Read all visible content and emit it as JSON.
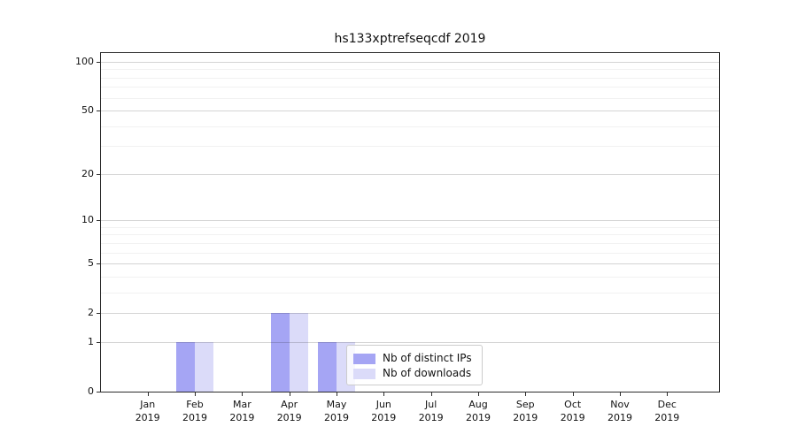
{
  "chart_data": {
    "type": "bar",
    "title": "hs133xptrefseqcdf 2019",
    "categories": [
      "Jan",
      "Feb",
      "Mar",
      "Apr",
      "May",
      "Jun",
      "Jul",
      "Aug",
      "Sep",
      "Oct",
      "Nov",
      "Dec"
    ],
    "year": "2019",
    "series": [
      {
        "name": "Nb of distinct IPs",
        "color": "#a5a5f4",
        "values": [
          0,
          1,
          0,
          2,
          1,
          0,
          0,
          0,
          0,
          0,
          0,
          0
        ]
      },
      {
        "name": "Nb of downloads",
        "color": "#dbdbf9",
        "values": [
          0,
          1,
          0,
          2,
          1,
          0,
          0,
          0,
          0,
          0,
          0,
          0
        ]
      }
    ],
    "yscale": "log10(1+y)",
    "ylim": [
      0,
      113
    ],
    "y_major_ticks": [
      0,
      1,
      2,
      5,
      10,
      20,
      50,
      100
    ],
    "y_minor_gridlines": [
      3,
      4,
      6,
      7,
      8,
      9,
      30,
      40,
      60,
      70,
      80,
      90
    ],
    "grid": true,
    "legend_position": "lower-right-inside",
    "colors": {
      "spine": "#2b2b2b",
      "major_grid": "#d4d4d4",
      "minor_grid": "#f0f0f0",
      "background": "#ffffff"
    }
  }
}
